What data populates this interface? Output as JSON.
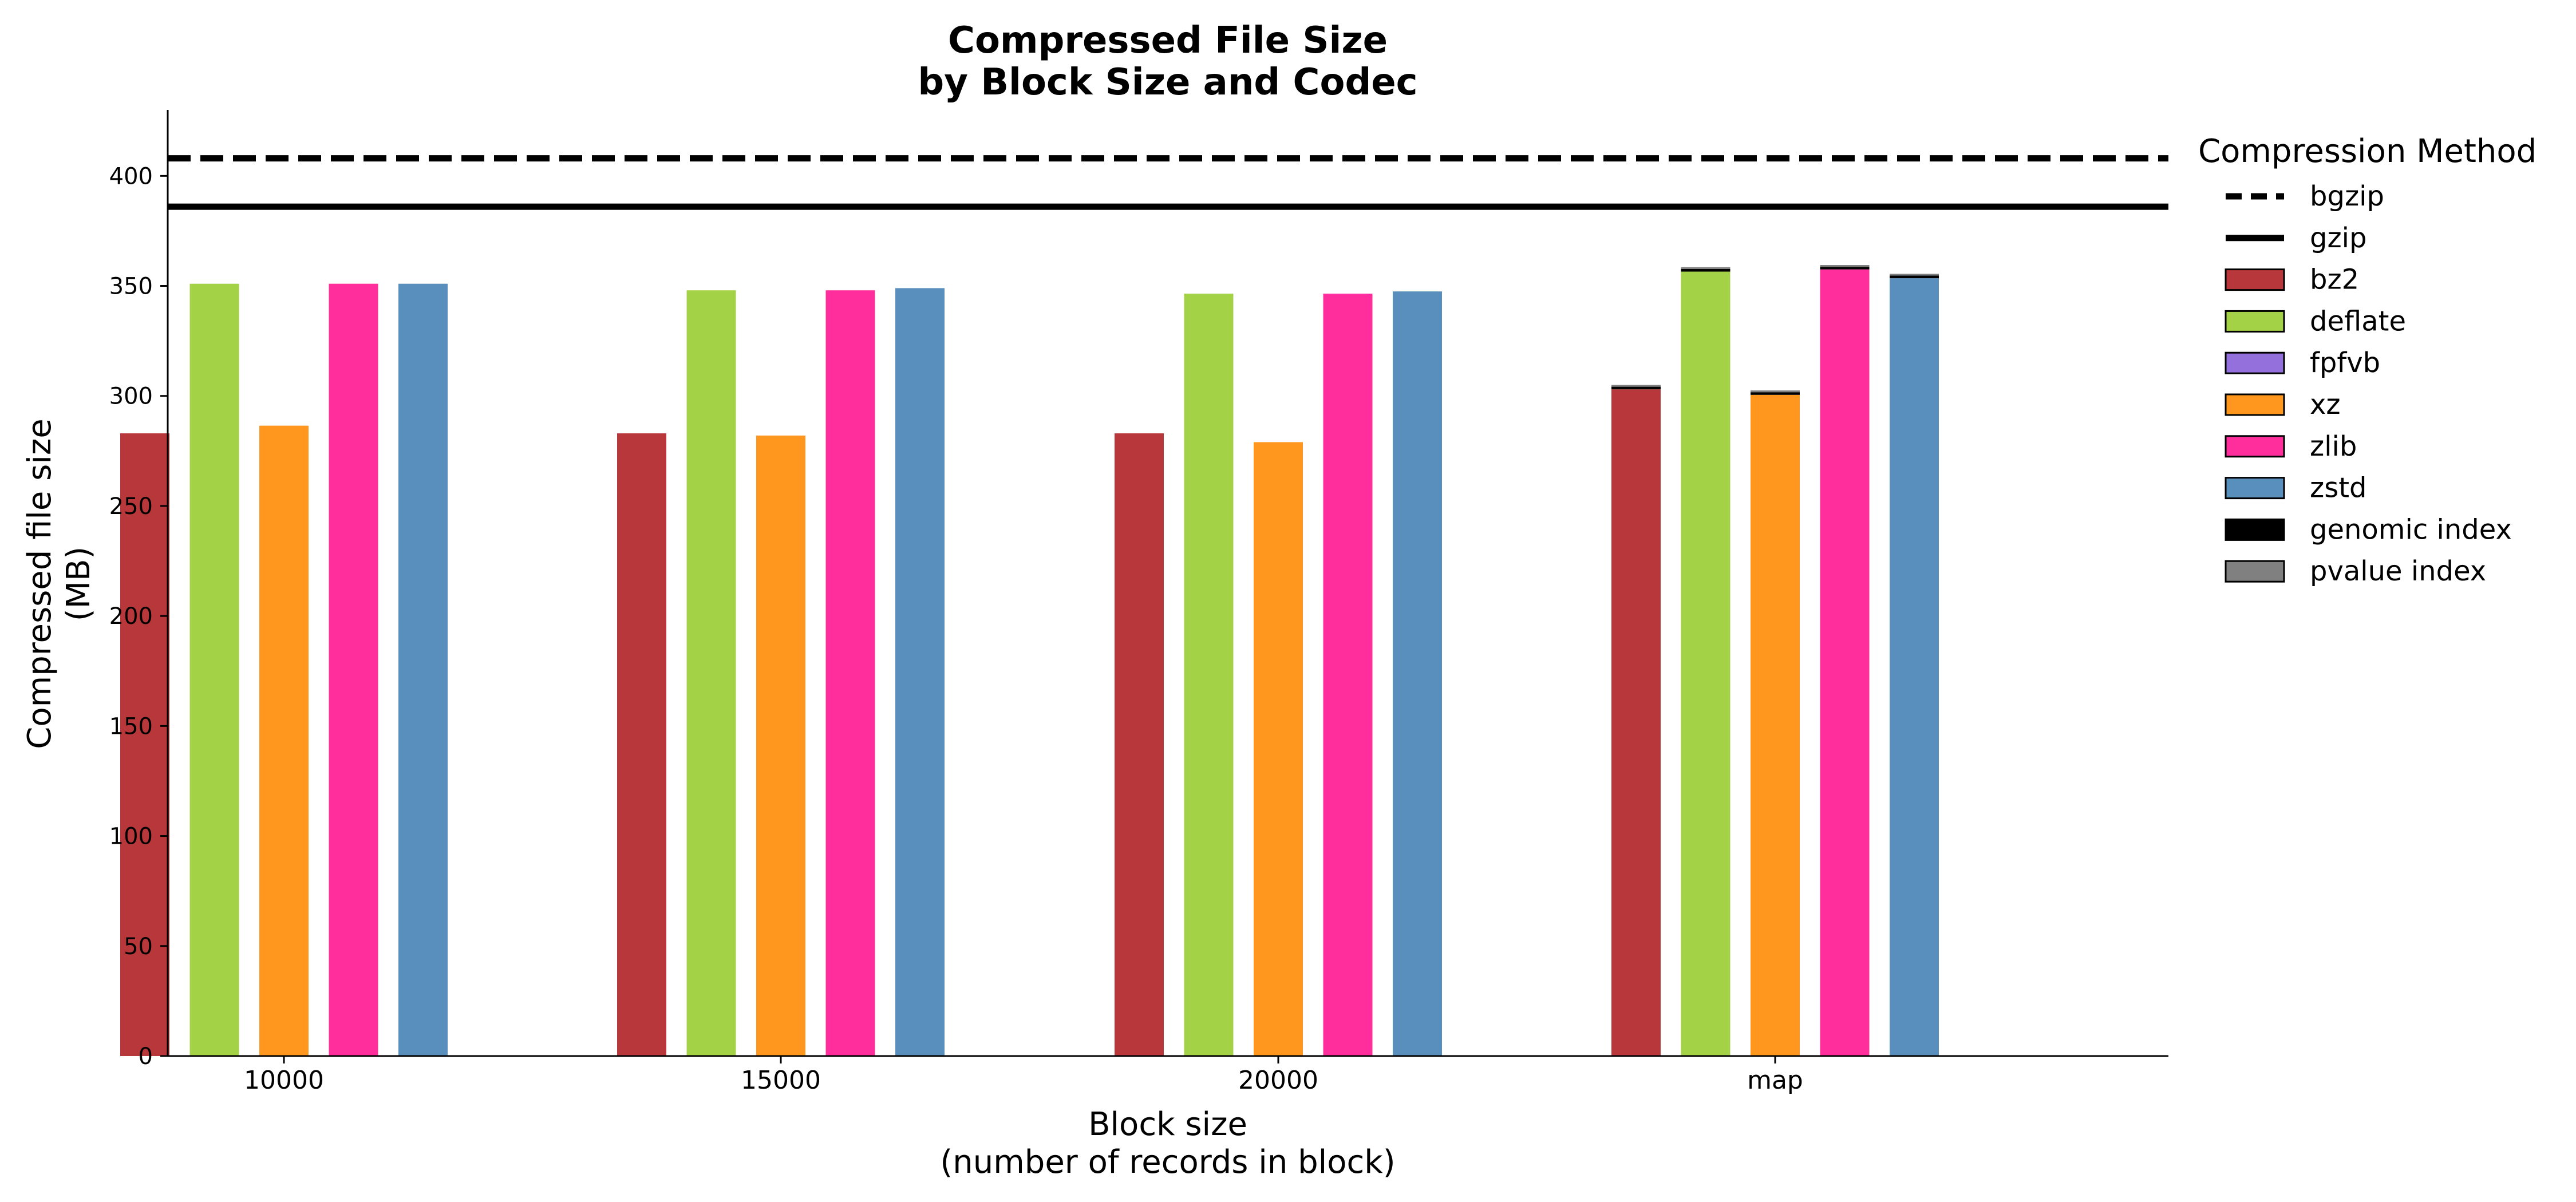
{
  "chart_data": {
    "type": "bar",
    "title": [
      "Compressed File Size",
      "by Block Size and Codec"
    ],
    "xlabel": [
      "Block size",
      "(number of records in block)"
    ],
    "ylabel": [
      "Compressed file size",
      "(MB)"
    ],
    "categories": [
      "10000",
      "15000",
      "20000",
      "map"
    ],
    "ylim": [
      0,
      430
    ],
    "yticks": [
      0,
      50,
      100,
      150,
      200,
      250,
      300,
      350,
      400
    ],
    "grid": false,
    "legend": {
      "title": "Compression Method",
      "placement": "right",
      "entries": [
        {
          "label": "bgzip",
          "kind": "dashed-line",
          "color": "#000000"
        },
        {
          "label": "gzip",
          "kind": "solid-line",
          "color": "#000000"
        },
        {
          "label": "bz2",
          "kind": "patch",
          "color": "#B8373A"
        },
        {
          "label": "deflate",
          "kind": "patch",
          "color": "#A4D247"
        },
        {
          "label": "fpfvb",
          "kind": "patch",
          "color": "#9370DB"
        },
        {
          "label": "xz",
          "kind": "patch",
          "color": "#FF971E"
        },
        {
          "label": "zlib",
          "kind": "patch",
          "color": "#FF2E9C"
        },
        {
          "label": "zstd",
          "kind": "patch",
          "color": "#598FBD"
        },
        {
          "label": "genomic index",
          "kind": "patch",
          "color": "#000000"
        },
        {
          "label": "pvalue index",
          "kind": "patch",
          "color": "#808080"
        }
      ]
    },
    "reference_lines": [
      {
        "name": "bgzip",
        "value": 408,
        "style": "dashed"
      },
      {
        "name": "gzip",
        "value": 386,
        "style": "solid"
      }
    ],
    "series": [
      {
        "name": "bz2",
        "color": "#B8373A",
        "values": [
          283,
          283,
          283,
          303
        ]
      },
      {
        "name": "deflate",
        "color": "#A4D247",
        "values": [
          351,
          348,
          346.5,
          356.5
        ]
      },
      {
        "name": "xz",
        "color": "#FF971E",
        "values": [
          286.5,
          282,
          279,
          300.5
        ]
      },
      {
        "name": "zlib",
        "color": "#FF2E9C",
        "values": [
          351,
          348,
          346.5,
          357.5
        ]
      },
      {
        "name": "zstd",
        "color": "#598FBD",
        "values": [
          351,
          349,
          347.5,
          353.5
        ]
      }
    ],
    "index_overhead": {
      "genomic index": {
        "color": "#000000",
        "values": [
          0,
          0,
          0,
          1.2
        ]
      },
      "pvalue index": {
        "color": "#808080",
        "values": [
          0,
          0,
          0,
          0.8
        ]
      }
    }
  }
}
